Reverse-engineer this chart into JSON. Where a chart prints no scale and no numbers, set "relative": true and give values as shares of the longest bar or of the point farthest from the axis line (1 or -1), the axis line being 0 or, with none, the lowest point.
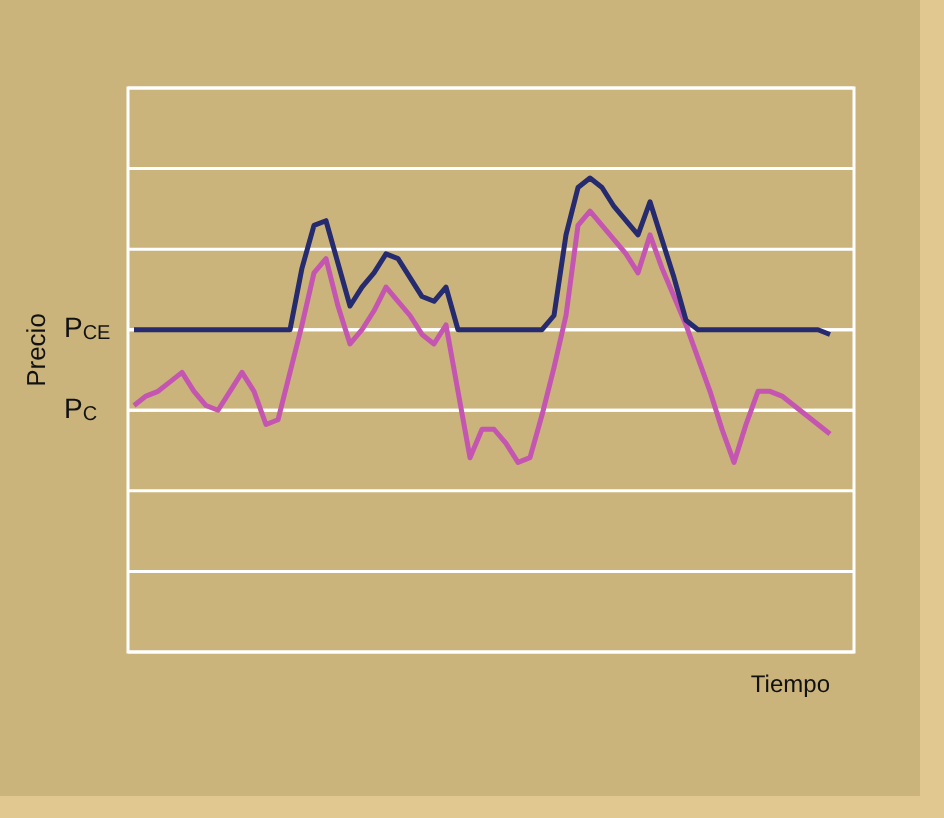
{
  "chart_data": {
    "type": "line",
    "relative": true,
    "xlabel": "Tiempo",
    "ylabel": "Precio",
    "categories": [
      null,
      null,
      null,
      null,
      null,
      null,
      null,
      null,
      null,
      null,
      null,
      null,
      null,
      null,
      null,
      null,
      null,
      null,
      null,
      null,
      null,
      null,
      null,
      null,
      null,
      null,
      null,
      null,
      null,
      null,
      null,
      null,
      null,
      null,
      null,
      null,
      null,
      null,
      null,
      null,
      null,
      null,
      null,
      null,
      null,
      null,
      null,
      null,
      null,
      null,
      null,
      null,
      null,
      null,
      null,
      null,
      null,
      null,
      null
    ],
    "ref_lines": [
      {
        "axis": "y",
        "value": 0.68,
        "label": "P$_{CE}$"
      },
      {
        "axis": "y",
        "value": 0.51,
        "label": "P$_{C}$"
      }
    ],
    "grid": "y",
    "legend": false,
    "marker": "none",
    "line_style": "solid",
    "series": [
      {
        "color": "#262a6e",
        "values": [
          0.68,
          0.68,
          0.68,
          0.68,
          0.68,
          0.68,
          0.68,
          0.68,
          0.68,
          0.68,
          0.68,
          0.68,
          0.68,
          0.68,
          0.81,
          0.9,
          0.91,
          0.82,
          0.73,
          0.77,
          0.8,
          0.84,
          0.83,
          0.79,
          0.75,
          0.74,
          0.77,
          0.68,
          0.68,
          0.68,
          0.68,
          0.68,
          0.68,
          0.68,
          0.68,
          0.71,
          0.88,
          0.98,
          1.0,
          0.98,
          0.94,
          0.91,
          0.88,
          0.95,
          0.87,
          0.79,
          0.7,
          0.68,
          0.68,
          0.68,
          0.68,
          0.68,
          0.68,
          0.68,
          0.68,
          0.68,
          0.68,
          0.68,
          0.67
        ]
      },
      {
        "color": "#c455b0",
        "values": [
          0.52,
          0.54,
          0.55,
          0.57,
          0.59,
          0.55,
          0.52,
          0.51,
          0.55,
          0.59,
          0.55,
          0.48,
          0.49,
          0.59,
          0.69,
          0.8,
          0.83,
          0.73,
          0.65,
          0.68,
          0.72,
          0.77,
          0.74,
          0.71,
          0.67,
          0.65,
          0.69,
          0.55,
          0.41,
          0.47,
          0.47,
          0.44,
          0.4,
          0.41,
          0.5,
          0.6,
          0.71,
          0.9,
          0.93,
          0.9,
          0.87,
          0.84,
          0.8,
          0.88,
          0.81,
          0.75,
          0.69,
          0.62,
          0.55,
          0.47,
          0.4,
          0.48,
          0.55,
          0.55,
          0.54,
          0.52,
          0.5,
          0.48,
          0.46
        ]
      }
    ]
  }
}
